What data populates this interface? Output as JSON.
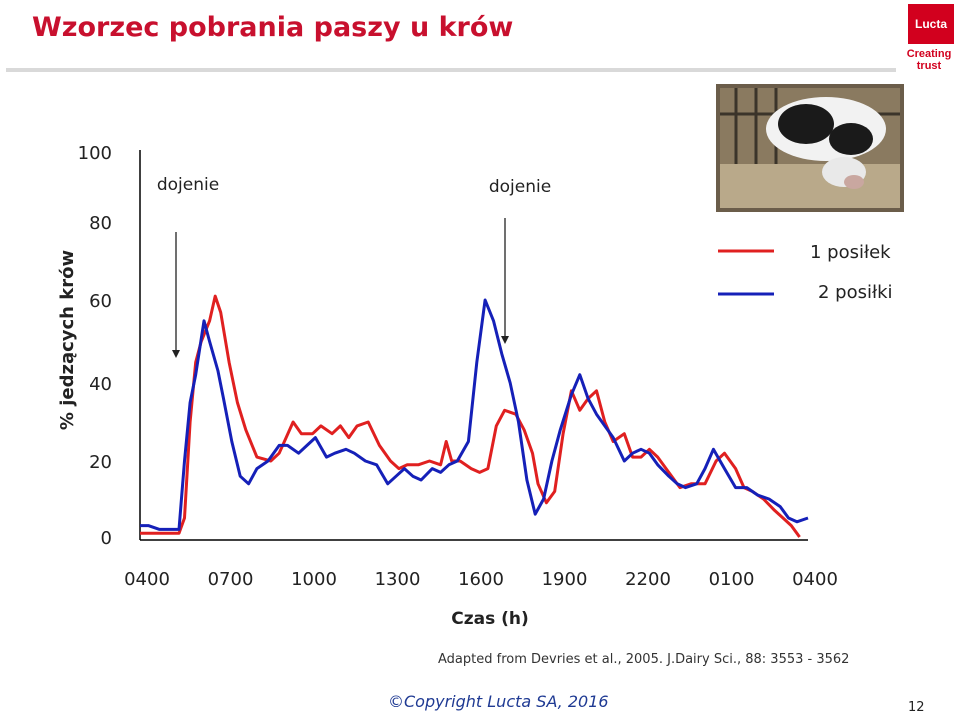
{
  "slide": {
    "title": "Wzorzec pobrania paszy u krów",
    "logo_name": "Lucta",
    "logo_tagline": "Creating trust",
    "source": "Adapted from Devries et al., 2005. J.Dairy Sci., 88: 3553 - 3562",
    "copyright": "©Copyright Lucta SA, 2016",
    "page_number": "12"
  },
  "colors": {
    "title": "#c8102e",
    "series_1": "#e02020",
    "series_2": "#1520b8",
    "brand": "#d2001e"
  },
  "chart_data": {
    "type": "line",
    "title": "",
    "xlabel": "Czas (h)",
    "ylabel": "% jedzących krów",
    "xlim": [
      0,
      24
    ],
    "ylim": [
      0,
      100
    ],
    "x_ticks": [
      {
        "x": 0,
        "label": "0400"
      },
      {
        "x": 3,
        "label": "0700"
      },
      {
        "x": 6,
        "label": "1000"
      },
      {
        "x": 9,
        "label": "1300"
      },
      {
        "x": 12,
        "label": "1600"
      },
      {
        "x": 15,
        "label": "1900"
      },
      {
        "x": 18,
        "label": "2200"
      },
      {
        "x": 21,
        "label": "0100"
      },
      {
        "x": 24,
        "label": "0400"
      }
    ],
    "y_ticks": [
      0,
      20,
      40,
      60,
      80,
      100
    ],
    "grid": false,
    "legend_position": "top-right",
    "annotations": [
      {
        "text": "dojenie",
        "x": 1.1
      },
      {
        "text": "dojenie",
        "x": 13.3
      }
    ],
    "series": [
      {
        "name": "1 posiłek",
        "color": "#e02020",
        "points": [
          [
            0,
            1
          ],
          [
            0.5,
            1
          ],
          [
            1,
            1
          ],
          [
            1.4,
            1
          ],
          [
            1.6,
            5
          ],
          [
            1.8,
            30
          ],
          [
            2.0,
            45
          ],
          [
            2.2,
            50
          ],
          [
            2.5,
            55
          ],
          [
            2.7,
            61
          ],
          [
            2.9,
            57
          ],
          [
            3.2,
            45
          ],
          [
            3.5,
            35
          ],
          [
            3.8,
            28
          ],
          [
            4.2,
            21
          ],
          [
            4.7,
            20
          ],
          [
            5.0,
            22
          ],
          [
            5.5,
            30
          ],
          [
            5.8,
            27
          ],
          [
            6.2,
            27
          ],
          [
            6.5,
            29
          ],
          [
            6.9,
            27
          ],
          [
            7.2,
            29
          ],
          [
            7.5,
            26
          ],
          [
            7.8,
            29
          ],
          [
            8.2,
            30
          ],
          [
            8.6,
            24
          ],
          [
            9.0,
            20
          ],
          [
            9.3,
            18
          ],
          [
            9.6,
            19
          ],
          [
            10.0,
            19
          ],
          [
            10.4,
            20
          ],
          [
            10.8,
            19
          ],
          [
            11.0,
            25
          ],
          [
            11.2,
            20
          ],
          [
            11.5,
            20
          ],
          [
            11.9,
            18
          ],
          [
            12.2,
            17
          ],
          [
            12.5,
            18
          ],
          [
            12.8,
            29
          ],
          [
            13.1,
            33
          ],
          [
            13.5,
            32
          ],
          [
            13.8,
            28
          ],
          [
            14.1,
            22
          ],
          [
            14.3,
            14
          ],
          [
            14.6,
            9
          ],
          [
            14.9,
            12
          ],
          [
            15.2,
            27
          ],
          [
            15.5,
            38
          ],
          [
            15.8,
            33
          ],
          [
            16.1,
            36
          ],
          [
            16.4,
            38
          ],
          [
            16.7,
            30
          ],
          [
            17.0,
            25
          ],
          [
            17.4,
            27
          ],
          [
            17.7,
            21
          ],
          [
            18.0,
            21
          ],
          [
            18.3,
            23
          ],
          [
            18.6,
            21
          ],
          [
            19.0,
            17
          ],
          [
            19.4,
            13
          ],
          [
            19.8,
            14
          ],
          [
            20.3,
            14
          ],
          [
            20.7,
            20
          ],
          [
            21.0,
            22
          ],
          [
            21.4,
            18
          ],
          [
            21.7,
            13
          ],
          [
            22.0,
            12
          ],
          [
            22.4,
            10
          ],
          [
            22.8,
            7
          ],
          [
            23.1,
            5
          ],
          [
            23.4,
            3
          ],
          [
            23.7,
            0
          ]
        ]
      },
      {
        "name": "2 posiłki",
        "color": "#1520b8",
        "points": [
          [
            0,
            3
          ],
          [
            0.3,
            3
          ],
          [
            0.7,
            2
          ],
          [
            1.0,
            2
          ],
          [
            1.4,
            2
          ],
          [
            1.6,
            20
          ],
          [
            1.8,
            35
          ],
          [
            2.0,
            42
          ],
          [
            2.3,
            55
          ],
          [
            2.5,
            50
          ],
          [
            2.8,
            43
          ],
          [
            3.0,
            36
          ],
          [
            3.3,
            25
          ],
          [
            3.6,
            16
          ],
          [
            3.9,
            14
          ],
          [
            4.2,
            18
          ],
          [
            4.6,
            20
          ],
          [
            5.0,
            24
          ],
          [
            5.3,
            24
          ],
          [
            5.7,
            22
          ],
          [
            6.0,
            24
          ],
          [
            6.3,
            26
          ],
          [
            6.7,
            21
          ],
          [
            7.0,
            22
          ],
          [
            7.4,
            23
          ],
          [
            7.7,
            22
          ],
          [
            8.1,
            20
          ],
          [
            8.5,
            19
          ],
          [
            8.9,
            14
          ],
          [
            9.2,
            16
          ],
          [
            9.5,
            18
          ],
          [
            9.8,
            16
          ],
          [
            10.1,
            15
          ],
          [
            10.5,
            18
          ],
          [
            10.8,
            17
          ],
          [
            11.1,
            19
          ],
          [
            11.4,
            20
          ],
          [
            11.8,
            25
          ],
          [
            12.1,
            45
          ],
          [
            12.4,
            60
          ],
          [
            12.7,
            55
          ],
          [
            13.0,
            47
          ],
          [
            13.3,
            40
          ],
          [
            13.6,
            30
          ],
          [
            13.9,
            15
          ],
          [
            14.2,
            6
          ],
          [
            14.5,
            10
          ],
          [
            14.8,
            20
          ],
          [
            15.1,
            28
          ],
          [
            15.5,
            37
          ],
          [
            15.8,
            42
          ],
          [
            16.1,
            36
          ],
          [
            16.4,
            32
          ],
          [
            16.7,
            29
          ],
          [
            17.0,
            26
          ],
          [
            17.4,
            20
          ],
          [
            17.7,
            22
          ],
          [
            18.0,
            23
          ],
          [
            18.3,
            22
          ],
          [
            18.6,
            19
          ],
          [
            19.0,
            16
          ],
          [
            19.3,
            14
          ],
          [
            19.6,
            13
          ],
          [
            20.0,
            14
          ],
          [
            20.3,
            18
          ],
          [
            20.6,
            23
          ],
          [
            21.0,
            18
          ],
          [
            21.4,
            13
          ],
          [
            21.8,
            13
          ],
          [
            22.2,
            11
          ],
          [
            22.6,
            10
          ],
          [
            23.0,
            8
          ],
          [
            23.3,
            5
          ],
          [
            23.6,
            4
          ],
          [
            24.0,
            5
          ]
        ]
      }
    ]
  }
}
